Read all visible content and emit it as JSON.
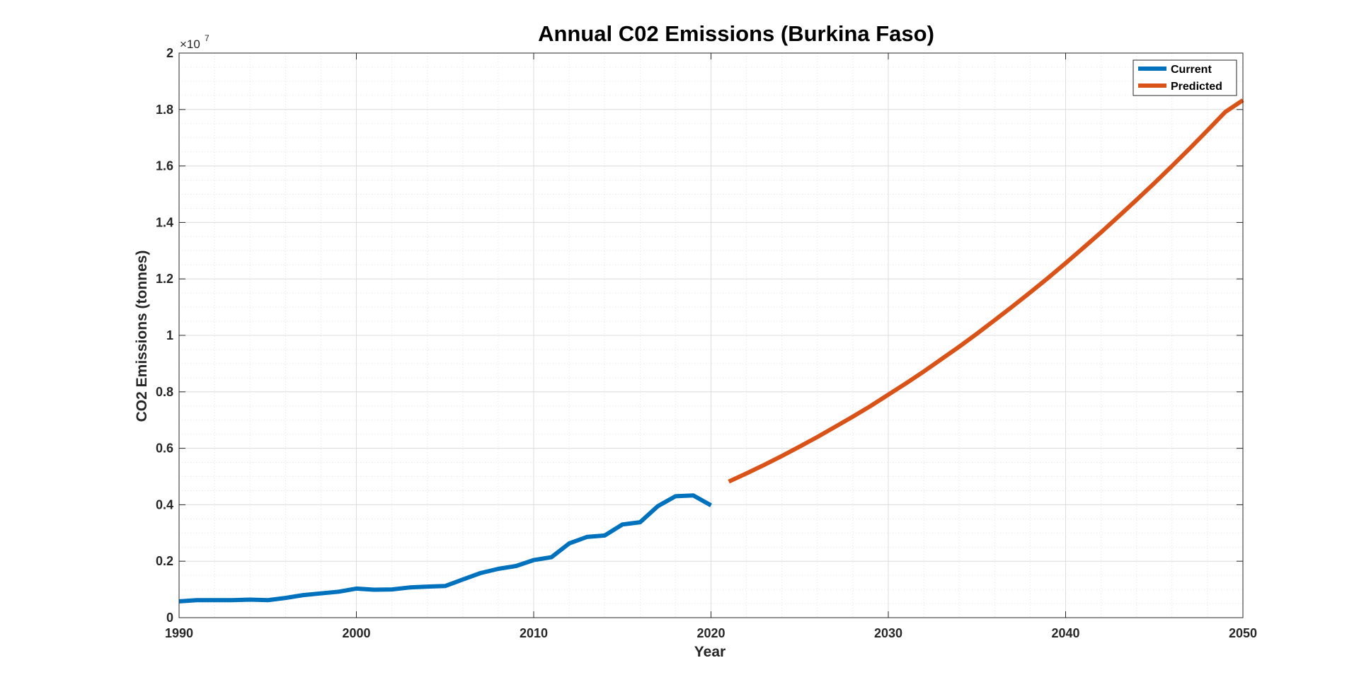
{
  "chart_data": {
    "type": "line",
    "title": "Annual C02 Emissions  (Burkina Faso)",
    "xlabel": "Year",
    "ylabel": "CO2 Emissions (tonnes)",
    "y_exponent_label": "×10",
    "y_exponent_power": "7",
    "xlim": [
      1990,
      2050
    ],
    "ylim": [
      0,
      2
    ],
    "y_scale": "×10^7",
    "x_ticks": [
      1990,
      2000,
      2010,
      2020,
      2030,
      2040,
      2050
    ],
    "x_tick_labels": [
      "1990",
      "2000",
      "2010",
      "2020",
      "2030",
      "2040",
      "2050"
    ],
    "y_ticks": [
      0,
      0.2,
      0.4,
      0.6,
      0.8,
      1.0,
      1.2,
      1.4,
      1.6,
      1.8,
      2.0
    ],
    "y_tick_labels": [
      "0",
      "0.2",
      "0.4",
      "0.6",
      "0.8",
      "1",
      "1.2",
      "1.4",
      "1.6",
      "1.8",
      "2"
    ],
    "grid": true,
    "minor_grid": true,
    "legend_position": "top-right",
    "series": [
      {
        "name": "Current",
        "color": "#0072BD",
        "x": [
          1990,
          1991,
          1992,
          1993,
          1994,
          1995,
          1996,
          1997,
          1998,
          1999,
          2000,
          2001,
          2002,
          2003,
          2004,
          2005,
          2006,
          2007,
          2008,
          2009,
          2010,
          2011,
          2012,
          2013,
          2014,
          2015,
          2016,
          2017,
          2018,
          2019,
          2020
        ],
        "y": [
          0.058,
          0.062,
          0.062,
          0.062,
          0.064,
          0.062,
          0.07,
          0.08,
          0.086,
          0.092,
          0.103,
          0.099,
          0.1,
          0.107,
          0.11,
          0.112,
          0.135,
          0.158,
          0.173,
          0.183,
          0.204,
          0.214,
          0.263,
          0.286,
          0.291,
          0.33,
          0.338,
          0.395,
          0.43,
          0.433,
          0.398
        ]
      },
      {
        "name": "Predicted",
        "color": "#D95319",
        "x": [
          2021,
          2022,
          2023,
          2024,
          2025,
          2026,
          2027,
          2028,
          2029,
          2030,
          2031,
          2032,
          2033,
          2034,
          2035,
          2036,
          2037,
          2038,
          2039,
          2040,
          2041,
          2042,
          2043,
          2044,
          2045,
          2046,
          2047,
          2048,
          2049,
          2050
        ],
        "y": [
          0.482,
          0.511,
          0.541,
          0.573,
          0.606,
          0.64,
          0.676,
          0.712,
          0.75,
          0.79,
          0.83,
          0.872,
          0.916,
          0.96,
          1.006,
          1.054,
          1.102,
          1.152,
          1.203,
          1.256,
          1.31,
          1.365,
          1.422,
          1.48,
          1.539,
          1.6,
          1.662,
          1.726,
          1.791,
          1.833
        ]
      }
    ]
  }
}
